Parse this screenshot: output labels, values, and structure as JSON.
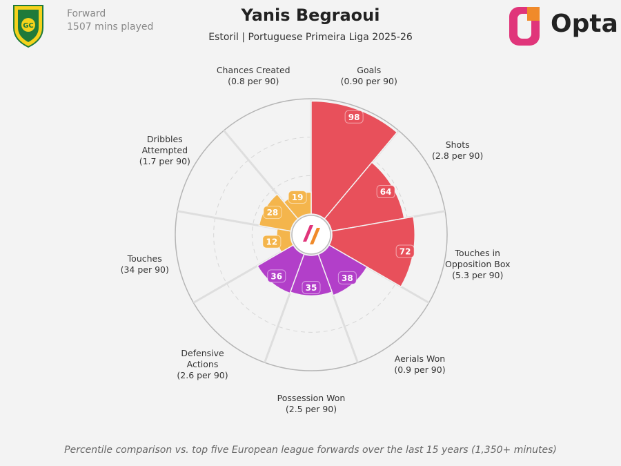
{
  "chart_data": {
    "type": "polar-bar",
    "title": "Yanis Begraoui",
    "subtitle": "Estoril | Portuguese Primeira Liga 2025-26",
    "position": "Forward",
    "minutes": "1507 mins played",
    "brand": "Opta",
    "footnote": "Percentile comparison vs. top five European league forwards over the last 15 years (1,350+ minutes)",
    "categories": [
      "Goals",
      "Shots",
      "Touches in Opposition Box",
      "Aerials Won",
      "Possession Won",
      "Defensive Actions",
      "Touches",
      "Dribbles Attempted",
      "Chances Created"
    ],
    "per90_labels": [
      "(0.90 per 90)",
      "(2.8 per 90)",
      "(5.3 per 90)",
      "(0.9 per 90)",
      "(2.5 per 90)",
      "(2.6 per 90)",
      "(34 per 90)",
      "(1.7 per 90)",
      "(0.8 per 90)"
    ],
    "values": [
      98,
      64,
      72,
      38,
      35,
      36,
      12,
      28,
      19
    ],
    "colors": [
      "#e8505b",
      "#e8505b",
      "#e8505b",
      "#b23fc9",
      "#b23fc9",
      "#b23fc9",
      "#f4b54c",
      "#f4b54c",
      "#f4b54c"
    ],
    "rlim": [
      0,
      100
    ]
  }
}
